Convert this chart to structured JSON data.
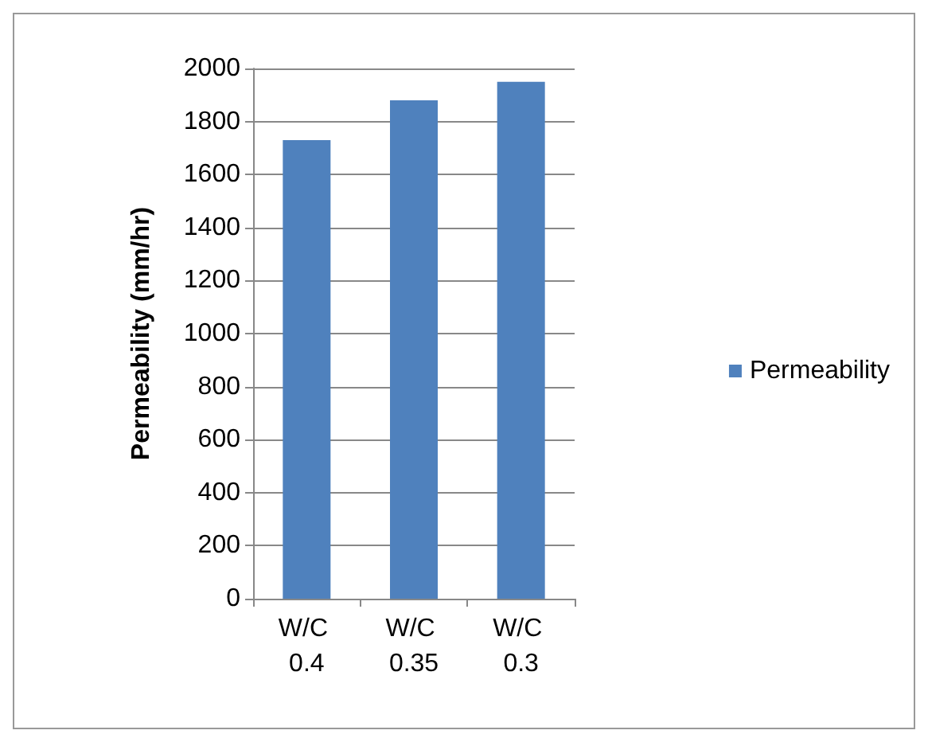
{
  "chart_data": {
    "type": "bar",
    "ylabel": "Permeability (mm/hr)",
    "categories": [
      "W/C 0.4",
      "W/C 0.35",
      "W/C 0.3"
    ],
    "series": [
      {
        "name": "Permeability",
        "color": "#4f81bd",
        "values": [
          1730,
          1880,
          1950
        ]
      }
    ],
    "ylim": [
      0,
      2000
    ],
    "yticks": [
      0,
      200,
      400,
      600,
      800,
      1000,
      1200,
      1400,
      1600,
      1800,
      2000
    ],
    "grid": "y",
    "legend": "right"
  }
}
